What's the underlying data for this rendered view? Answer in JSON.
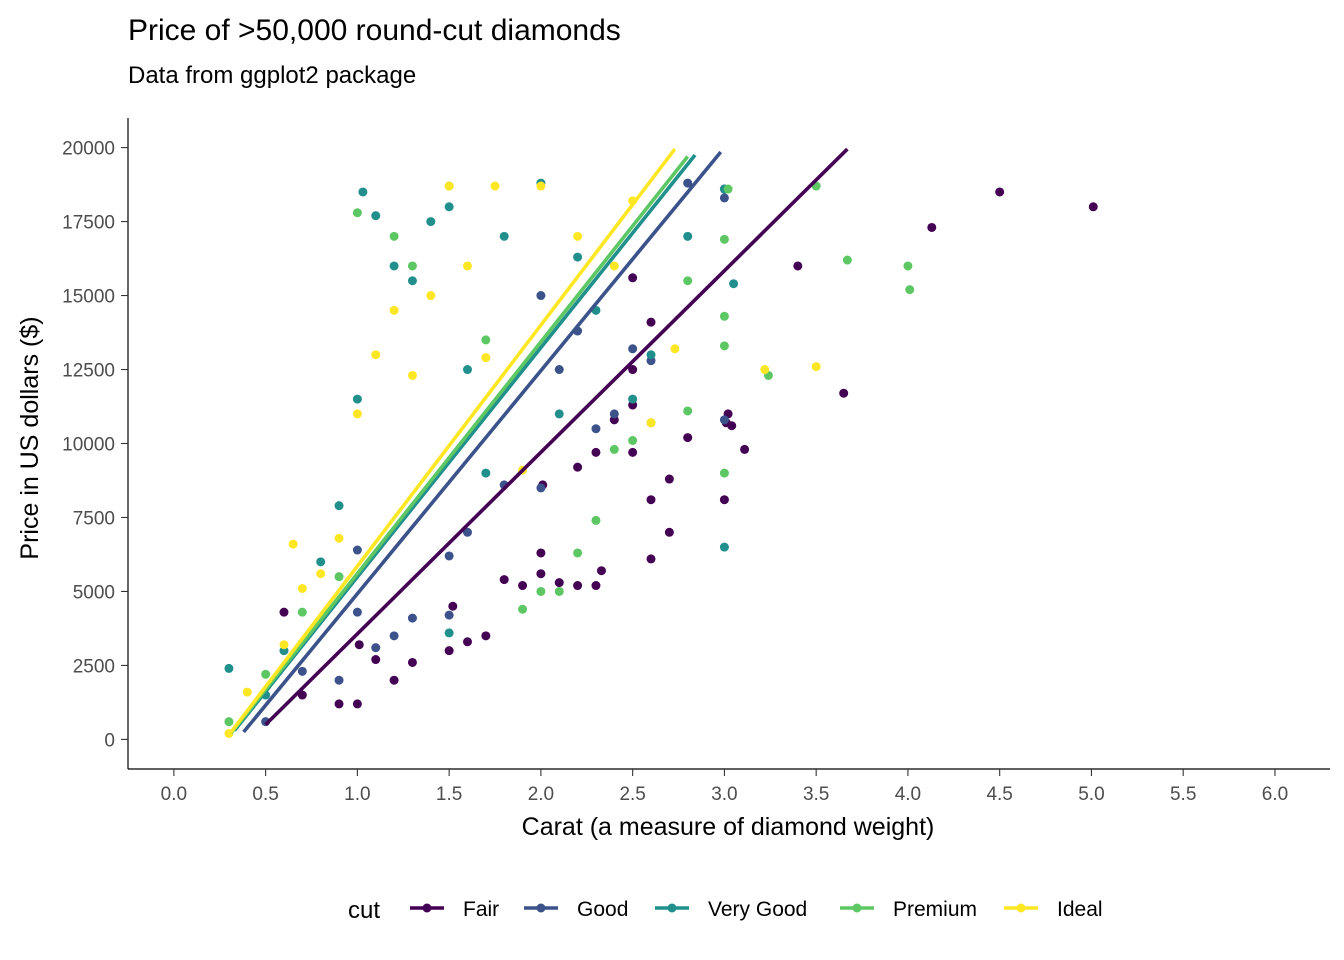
{
  "chart_data": {
    "type": "scatter",
    "title": "Price of >50,000 round-cut diamonds",
    "subtitle": "Data from ggplot2 package",
    "xlabel": "Carat (a measure of diamond weight)",
    "ylabel": "Price in US dollars ($)",
    "xlim": [
      -0.25,
      6.3
    ],
    "ylim": [
      -1000,
      21000
    ],
    "x_ticks": [
      0.0,
      0.5,
      1.0,
      1.5,
      2.0,
      2.5,
      3.0,
      3.5,
      4.0,
      4.5,
      5.0,
      5.5,
      6.0
    ],
    "x_tick_labels": [
      "0.0",
      "0.5",
      "1.0",
      "1.5",
      "2.0",
      "2.5",
      "3.0",
      "3.5",
      "4.0",
      "4.5",
      "5.0",
      "5.5",
      "6.0"
    ],
    "y_ticks": [
      0,
      2500,
      5000,
      7500,
      10000,
      12500,
      15000,
      17500,
      20000
    ],
    "y_tick_labels": [
      "0",
      "2500",
      "5000",
      "7500",
      "10000",
      "12500",
      "15000",
      "17500",
      "20000"
    ],
    "grid": false,
    "legend": {
      "title": "cut",
      "position": "bottom"
    },
    "series": [
      {
        "name": "Fair",
        "color": "#440154",
        "trend": {
          "x": [
            0.5,
            3.67
          ],
          "y": [
            500,
            19950
          ]
        },
        "points": [
          [
            0.6,
            4300
          ],
          [
            0.7,
            1500
          ],
          [
            0.9,
            1200
          ],
          [
            1.0,
            1200
          ],
          [
            1.01,
            3200
          ],
          [
            1.1,
            2700
          ],
          [
            1.2,
            2000
          ],
          [
            1.3,
            2600
          ],
          [
            1.5,
            3000
          ],
          [
            1.52,
            4500
          ],
          [
            1.6,
            3300
          ],
          [
            1.7,
            3500
          ],
          [
            1.8,
            5400
          ],
          [
            1.9,
            5200
          ],
          [
            2.0,
            5600
          ],
          [
            2.0,
            6300
          ],
          [
            2.1,
            5300
          ],
          [
            2.2,
            5200
          ],
          [
            2.3,
            5200
          ],
          [
            2.33,
            5700
          ],
          [
            2.01,
            8600
          ],
          [
            2.2,
            9200
          ],
          [
            2.3,
            9700
          ],
          [
            2.4,
            10800
          ],
          [
            2.5,
            11300
          ],
          [
            2.5,
            9700
          ],
          [
            2.6,
            8100
          ],
          [
            2.6,
            6100
          ],
          [
            2.7,
            7000
          ],
          [
            2.7,
            8800
          ],
          [
            2.8,
            10200
          ],
          [
            2.5,
            12500
          ],
          [
            2.6,
            14100
          ],
          [
            2.5,
            15600
          ],
          [
            3.0,
            8100
          ],
          [
            3.01,
            10700
          ],
          [
            3.02,
            11000
          ],
          [
            3.04,
            10600
          ],
          [
            3.11,
            9800
          ],
          [
            3.4,
            16000
          ],
          [
            3.65,
            11700
          ],
          [
            4.13,
            17300
          ],
          [
            4.5,
            18500
          ],
          [
            5.01,
            18000
          ]
        ]
      },
      {
        "name": "Good",
        "color": "#3b528b",
        "trend": {
          "x": [
            0.38,
            2.98
          ],
          "y": [
            250,
            19850
          ]
        },
        "points": [
          [
            0.5,
            600
          ],
          [
            0.7,
            2300
          ],
          [
            0.9,
            2000
          ],
          [
            1.0,
            4300
          ],
          [
            1.0,
            6400
          ],
          [
            1.1,
            3100
          ],
          [
            1.2,
            3500
          ],
          [
            1.3,
            4100
          ],
          [
            1.5,
            4200
          ],
          [
            1.5,
            6200
          ],
          [
            1.6,
            7000
          ],
          [
            1.8,
            8600
          ],
          [
            2.0,
            8500
          ],
          [
            2.0,
            15000
          ],
          [
            2.1,
            12500
          ],
          [
            2.2,
            13800
          ],
          [
            2.3,
            10500
          ],
          [
            2.4,
            11000
          ],
          [
            2.5,
            13200
          ],
          [
            2.6,
            12800
          ],
          [
            2.8,
            18800
          ],
          [
            3.0,
            10800
          ],
          [
            3.0,
            18300
          ],
          [
            3.0,
            18600
          ]
        ]
      },
      {
        "name": "Very Good",
        "color": "#21908c",
        "trend": {
          "x": [
            0.33,
            2.84
          ],
          "y": [
            300,
            19750
          ]
        },
        "points": [
          [
            0.3,
            2400
          ],
          [
            0.5,
            1500
          ],
          [
            0.6,
            3000
          ],
          [
            0.8,
            6000
          ],
          [
            0.9,
            7900
          ],
          [
            1.0,
            11500
          ],
          [
            1.03,
            18500
          ],
          [
            1.1,
            17700
          ],
          [
            1.2,
            16000
          ],
          [
            1.3,
            15500
          ],
          [
            1.4,
            17500
          ],
          [
            1.5,
            18000
          ],
          [
            1.5,
            3600
          ],
          [
            1.6,
            12500
          ],
          [
            1.7,
            9000
          ],
          [
            1.8,
            17000
          ],
          [
            2.0,
            18800
          ],
          [
            2.1,
            11000
          ],
          [
            2.2,
            16300
          ],
          [
            2.3,
            14500
          ],
          [
            2.5,
            11500
          ],
          [
            2.6,
            13000
          ],
          [
            2.8,
            17000
          ],
          [
            3.0,
            6500
          ],
          [
            3.0,
            18600
          ],
          [
            3.05,
            15400
          ]
        ]
      },
      {
        "name": "Premium",
        "color": "#5dc863",
        "trend": {
          "x": [
            0.31,
            2.8
          ],
          "y": [
            200,
            19700
          ]
        },
        "points": [
          [
            0.3,
            600
          ],
          [
            0.5,
            2200
          ],
          [
            0.7,
            4300
          ],
          [
            0.9,
            5500
          ],
          [
            1.0,
            17800
          ],
          [
            1.2,
            17000
          ],
          [
            1.3,
            16000
          ],
          [
            1.5,
            18700
          ],
          [
            1.7,
            13500
          ],
          [
            1.9,
            4400
          ],
          [
            2.0,
            5000
          ],
          [
            2.1,
            5000
          ],
          [
            2.2,
            6300
          ],
          [
            2.3,
            7400
          ],
          [
            2.4,
            9800
          ],
          [
            2.5,
            10100
          ],
          [
            2.6,
            10700
          ],
          [
            2.8,
            11100
          ],
          [
            2.8,
            15500
          ],
          [
            3.0,
            9000
          ],
          [
            3.0,
            13300
          ],
          [
            3.0,
            14300
          ],
          [
            3.0,
            16900
          ],
          [
            3.02,
            18600
          ],
          [
            3.24,
            12300
          ],
          [
            3.5,
            18700
          ],
          [
            3.67,
            16200
          ],
          [
            4.01,
            15200
          ],
          [
            4.0,
            16000
          ]
        ]
      },
      {
        "name": "Ideal",
        "color": "#fde725",
        "trend": {
          "x": [
            0.3,
            2.73
          ],
          "y": [
            150,
            19950
          ]
        },
        "points": [
          [
            0.3,
            200
          ],
          [
            0.4,
            1600
          ],
          [
            0.6,
            3200
          ],
          [
            0.7,
            5100
          ],
          [
            0.8,
            5600
          ],
          [
            0.9,
            6800
          ],
          [
            0.65,
            6600
          ],
          [
            1.0,
            11000
          ],
          [
            1.1,
            13000
          ],
          [
            1.2,
            14500
          ],
          [
            1.3,
            12300
          ],
          [
            1.4,
            15000
          ],
          [
            1.5,
            18700
          ],
          [
            1.6,
            16000
          ],
          [
            1.7,
            12900
          ],
          [
            1.75,
            18700
          ],
          [
            1.9,
            9100
          ],
          [
            2.0,
            18700
          ],
          [
            2.2,
            17000
          ],
          [
            2.4,
            16000
          ],
          [
            2.6,
            10700
          ],
          [
            2.73,
            13200
          ],
          [
            2.5,
            18200
          ],
          [
            3.22,
            12500
          ],
          [
            3.5,
            12600
          ]
        ]
      }
    ]
  }
}
